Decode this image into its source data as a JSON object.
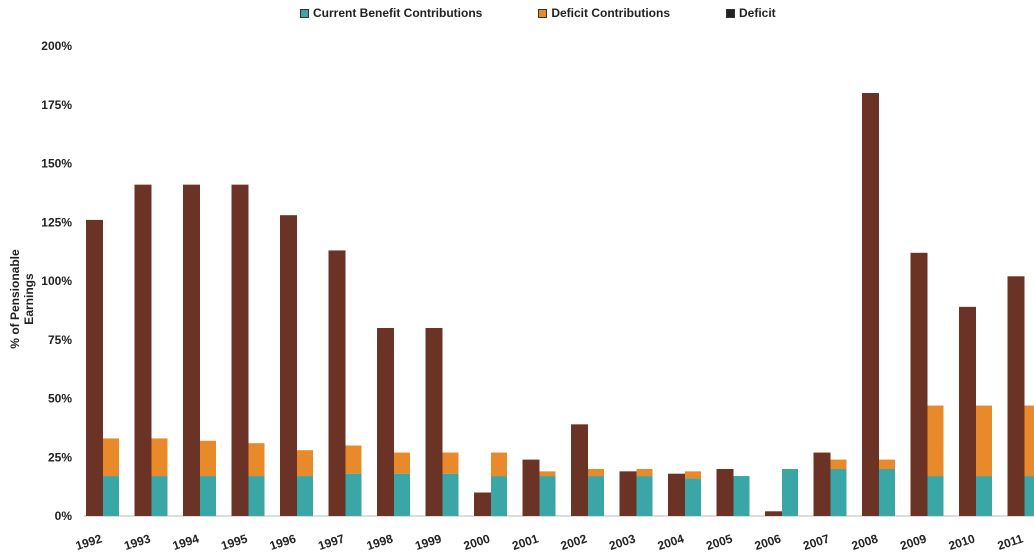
{
  "chart_data": {
    "type": "bar",
    "title": "",
    "xlabel": "",
    "ylabel": "% of Pensionable Earnings",
    "ylim": [
      0,
      200
    ],
    "yticks": [
      "0%",
      "25%",
      "50%",
      "75%",
      "100%",
      "125%",
      "150%",
      "175%",
      "200%"
    ],
    "grid": false,
    "legend_position": "top",
    "categories": [
      "1992",
      "1993",
      "1994",
      "1995",
      "1996",
      "1997",
      "1998",
      "1999",
      "2000",
      "2001",
      "2002",
      "2003",
      "2004",
      "2005",
      "2006",
      "2007",
      "2008",
      "2009",
      "2010",
      "2011"
    ],
    "series": [
      {
        "name": "Deficit",
        "color": "#6b3326",
        "values": [
          126,
          141,
          141,
          141,
          128,
          113,
          80,
          80,
          10,
          24,
          39,
          19,
          18,
          20,
          2,
          27,
          180,
          112,
          89,
          102
        ]
      },
      {
        "name": "Current Benefit Contributions",
        "color": "#3aa6a6",
        "values": [
          17,
          17,
          17,
          17,
          17,
          18,
          18,
          18,
          17,
          17,
          17,
          17,
          16,
          17,
          20,
          20,
          20,
          17,
          17,
          17
        ]
      },
      {
        "name": "Deficit Contributions",
        "color": "#e88a2a",
        "values": [
          16,
          16,
          15,
          14,
          11,
          12,
          9,
          9,
          10,
          2,
          3,
          3,
          3,
          0,
          0,
          4,
          4,
          30,
          30,
          30
        ]
      }
    ]
  },
  "legend": {
    "items": [
      {
        "label": "Current Benefit Contributions",
        "color": "#3aa6a6"
      },
      {
        "label": "Deficit Contributions",
        "color": "#e88a2a"
      },
      {
        "label": "Deficit",
        "color": "#222222"
      }
    ]
  }
}
